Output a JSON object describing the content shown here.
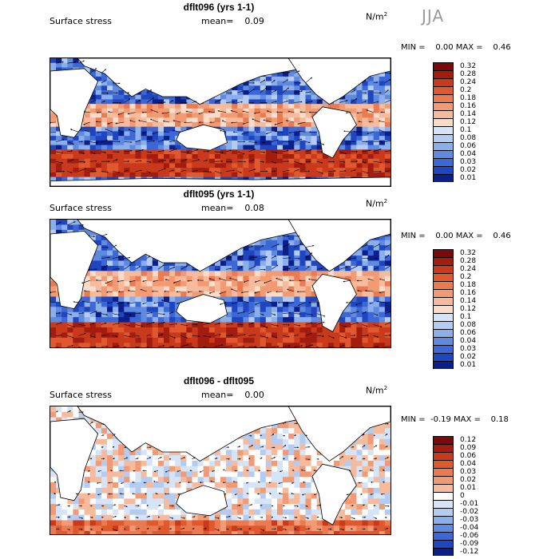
{
  "season": "JJA",
  "panels": [
    {
      "title": "dflt096 (yrs 1-1)",
      "variable": "Surface stress",
      "mean_label": "mean=",
      "mean": "0.09",
      "units_base": "N/m",
      "units_exp": "2",
      "minmax": "MIN =    0.00 MAX =    0.46",
      "scale": "positive",
      "levels": [
        "0.32",
        "0.28",
        "0.24",
        "0.2",
        "0.18",
        "0.16",
        "0.14",
        "0.12",
        "0.1",
        "0.08",
        "0.06",
        "0.04",
        "0.03",
        "0.02",
        "0.01"
      ]
    },
    {
      "title": "dflt095 (yrs 1-1)",
      "variable": "Surface stress",
      "mean_label": "mean=",
      "mean": "0.08",
      "units_base": "N/m",
      "units_exp": "2",
      "minmax": "MIN =    0.00 MAX =    0.46",
      "scale": "positive",
      "levels": [
        "0.32",
        "0.28",
        "0.24",
        "0.2",
        "0.18",
        "0.16",
        "0.14",
        "0.12",
        "0.1",
        "0.08",
        "0.06",
        "0.04",
        "0.03",
        "0.02",
        "0.01"
      ]
    },
    {
      "title": "dflt096 - dflt095",
      "variable": "Surface stress",
      "mean_label": "mean=",
      "mean": "0.00",
      "units_base": "N/m",
      "units_exp": "2",
      "minmax": "MIN =  -0.19 MAX =    0.18",
      "scale": "difference",
      "levels": [
        "0.12",
        "0.09",
        "0.06",
        "0.04",
        "0.03",
        "0.02",
        "0.01",
        "0",
        "-0.01",
        "-0.02",
        "-0.03",
        "-0.04",
        "-0.06",
        "-0.09",
        "-0.12"
      ]
    }
  ],
  "colors": {
    "positive": [
      "#7a0a0a",
      "#a31c10",
      "#c93a1c",
      "#e0582e",
      "#ea7a50",
      "#f19a74",
      "#f6bb9c",
      "#fadcc8",
      "#d6e4f8",
      "#b4ccf2",
      "#8bafea",
      "#5f8ae0",
      "#3b68d6",
      "#1f45c0",
      "#0a1f8a"
    ],
    "difference": [
      "#7a0a0a",
      "#a31c10",
      "#c93a1c",
      "#e0582e",
      "#ea7a50",
      "#f19a74",
      "#f6bb9c",
      "#ffffff",
      "#d6e4f8",
      "#b4ccf2",
      "#8bafea",
      "#5f8ae0",
      "#3b68d6",
      "#1f45c0",
      "#0a1f8a"
    ],
    "land": "#ffffff",
    "coast": "#000000"
  }
}
